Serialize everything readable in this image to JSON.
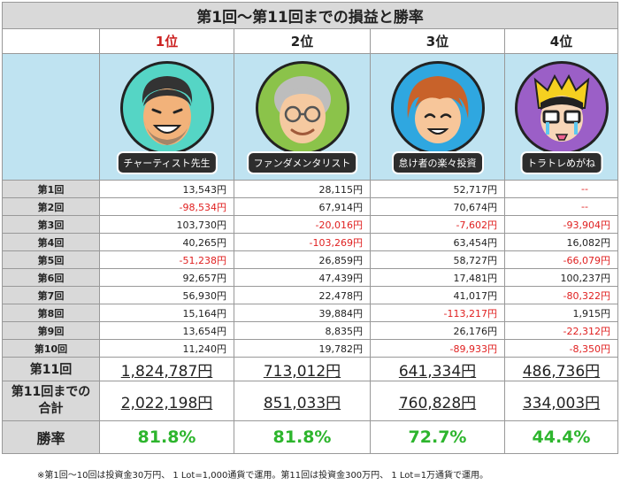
{
  "title": "第1回〜第11回までの損益と勝率",
  "ranks": [
    "1位",
    "2位",
    "3位",
    "4位"
  ],
  "traders": [
    {
      "name": "チャーティスト先生",
      "avatar_icon": "smiling-man-avatar-icon",
      "bg": "#55d5c5"
    },
    {
      "name": "ファンダメンタリスト",
      "avatar_icon": "elderly-man-avatar-icon",
      "bg": "#8bc34a"
    },
    {
      "name": "怠け者の楽々投資",
      "avatar_icon": "young-man-avatar-icon",
      "bg": "#2fa7e0"
    },
    {
      "name": "トラトレめがね",
      "avatar_icon": "glasses-crying-avatar-icon",
      "bg": "#9b5fc7"
    }
  ],
  "rounds": [
    {
      "label": "第1回",
      "values": [
        "13,543円",
        "28,115円",
        "52,717円",
        "--"
      ]
    },
    {
      "label": "第2回",
      "values": [
        "-98,534円",
        "67,914円",
        "70,674円",
        "--"
      ]
    },
    {
      "label": "第3回",
      "values": [
        "103,730円",
        "-20,016円",
        "-7,602円",
        "-93,904円"
      ]
    },
    {
      "label": "第4回",
      "values": [
        "40,265円",
        "-103,269円",
        "63,454円",
        "16,082円"
      ]
    },
    {
      "label": "第5回",
      "values": [
        "-51,238円",
        "26,859円",
        "58,727円",
        "-66,079円"
      ]
    },
    {
      "label": "第6回",
      "values": [
        "92,657円",
        "47,439円",
        "17,481円",
        "100,237円"
      ]
    },
    {
      "label": "第7回",
      "values": [
        "56,930円",
        "22,478円",
        "41,017円",
        "-80,322円"
      ]
    },
    {
      "label": "第8回",
      "values": [
        "15,164円",
        "39,884円",
        "-113,217円",
        "1,915円"
      ]
    },
    {
      "label": "第9回",
      "values": [
        "13,654円",
        "8,835円",
        "26,176円",
        "-22,312円"
      ]
    },
    {
      "label": "第10回",
      "values": [
        "11,240円",
        "19,782円",
        "-89,933円",
        "-8,350円"
      ]
    }
  ],
  "round11": {
    "label": "第11回",
    "values": [
      "1,824,787円",
      "713,012円",
      "641,334円",
      "486,736円"
    ]
  },
  "total": {
    "label_line1": "第11回までの",
    "label_line2": "合計",
    "values": [
      "2,022,198円",
      "851,033円",
      "760,828円",
      "334,003円"
    ]
  },
  "winrate": {
    "label": "勝率",
    "values": [
      "81.8%",
      "81.8%",
      "72.7%",
      "44.4%"
    ]
  },
  "footnote": "※第1回〜10回は投資金30万円、 1 Lot=1,000通貨で運用。第11回は投資金300万円、 1 Lot=1万通貨で運用。",
  "colors": {
    "negative": "#e02020",
    "winrate": "#2db52d",
    "first_rank": "#cc2222",
    "header_bg": "#d9d9d9",
    "photo_bg": "#bfe3f1"
  }
}
